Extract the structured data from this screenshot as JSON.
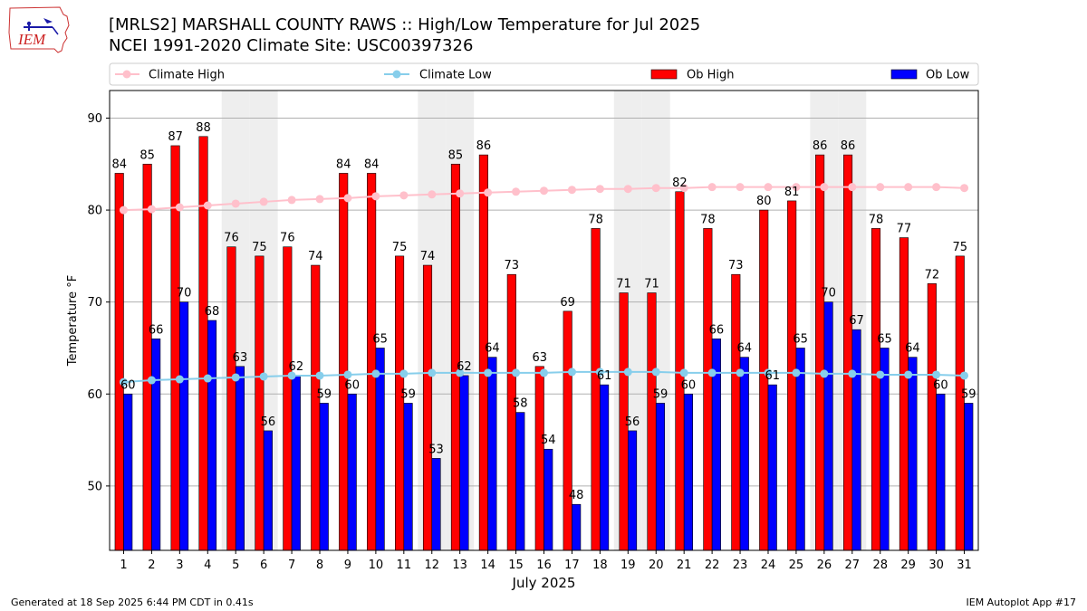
{
  "title": {
    "line1": "[MRLS2] MARSHALL COUNTY RAWS :: High/Low Temperature for Jul 2025",
    "line2": "NCEI 1991-2020 Climate Site: USC00397326"
  },
  "logo": {
    "text": "IEM"
  },
  "footer": {
    "generated": "Generated at 18 Sep 2025 6:44 PM CDT in 0.41s",
    "app": "IEM Autoplot App #17"
  },
  "colors": {
    "ob_high": "#ff0000",
    "ob_low": "#0000ff",
    "climate_high": "#ffc0cb",
    "climate_low": "#87ceeb",
    "weekend": "#eeeeee",
    "grid": "#b0b0b0"
  },
  "chart_data": {
    "type": "bar",
    "title": "[MRLS2] MARSHALL COUNTY RAWS :: High/Low Temperature for Jul 2025",
    "subtitle": "NCEI 1991-2020 Climate Site: USC00397326",
    "xlabel": "July 2025",
    "ylabel": "Temperature °F",
    "ylim": [
      43,
      93
    ],
    "yticks": [
      50,
      60,
      70,
      80,
      90
    ],
    "categories": [
      "1",
      "2",
      "3",
      "4",
      "5",
      "6",
      "7",
      "8",
      "9",
      "10",
      "11",
      "12",
      "13",
      "14",
      "15",
      "16",
      "17",
      "18",
      "19",
      "20",
      "21",
      "22",
      "23",
      "24",
      "25",
      "26",
      "27",
      "28",
      "29",
      "30",
      "31"
    ],
    "weekend_days": [
      5,
      6,
      12,
      13,
      19,
      20,
      26,
      27
    ],
    "legend": [
      "Climate High",
      "Climate Low",
      "Ob High",
      "Ob Low"
    ],
    "legend_position": "top",
    "grid": "y",
    "series": [
      {
        "name": "Ob High",
        "kind": "bar",
        "values": [
          84,
          85,
          87,
          88,
          76,
          75,
          76,
          74,
          84,
          84,
          75,
          74,
          85,
          86,
          73,
          63,
          69,
          78,
          71,
          71,
          82,
          78,
          73,
          80,
          81,
          86,
          86,
          78,
          77,
          72,
          75
        ]
      },
      {
        "name": "Ob Low",
        "kind": "bar",
        "values": [
          60,
          66,
          70,
          68,
          63,
          56,
          62,
          59,
          60,
          65,
          59,
          53,
          62,
          64,
          58,
          54,
          48,
          61,
          56,
          59,
          60,
          66,
          64,
          61,
          65,
          70,
          67,
          65,
          64,
          60,
          59
        ]
      },
      {
        "name": "Climate High",
        "kind": "line",
        "values": [
          80.0,
          80.1,
          80.3,
          80.5,
          80.7,
          80.9,
          81.1,
          81.2,
          81.3,
          81.5,
          81.6,
          81.7,
          81.8,
          81.9,
          82.0,
          82.1,
          82.2,
          82.3,
          82.3,
          82.4,
          82.4,
          82.5,
          82.5,
          82.5,
          82.5,
          82.5,
          82.5,
          82.5,
          82.5,
          82.5,
          82.4
        ]
      },
      {
        "name": "Climate Low",
        "kind": "line",
        "values": [
          61.3,
          61.5,
          61.6,
          61.7,
          61.8,
          61.9,
          62.0,
          62.0,
          62.1,
          62.2,
          62.2,
          62.3,
          62.3,
          62.3,
          62.3,
          62.3,
          62.4,
          62.4,
          62.4,
          62.4,
          62.3,
          62.3,
          62.3,
          62.3,
          62.3,
          62.2,
          62.2,
          62.1,
          62.1,
          62.1,
          62.0
        ]
      }
    ]
  }
}
